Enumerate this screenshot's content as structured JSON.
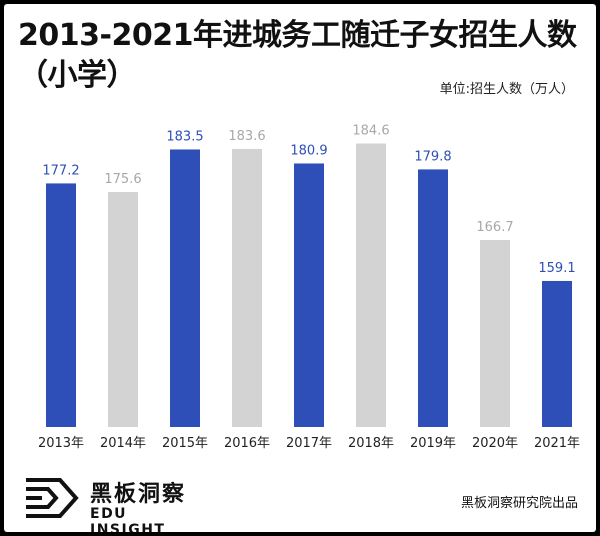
{
  "chart_data": {
    "type": "bar",
    "title": "2013-2021年进城务工随迁子女招生人数（小学）",
    "unit_label": "单位:招生人数（万人）",
    "categories": [
      "2013年",
      "2014年",
      "2015年",
      "2016年",
      "2017年",
      "2018年",
      "2019年",
      "2020年",
      "2021年"
    ],
    "values": [
      177.2,
      175.6,
      183.5,
      183.6,
      180.9,
      184.6,
      179.8,
      166.7,
      159.1
    ],
    "value_labels": [
      "177.2",
      "175.6",
      "183.5",
      "183.6",
      "180.9",
      "184.6",
      "179.8",
      "166.7",
      "159.1"
    ],
    "highlight": [
      true,
      false,
      true,
      false,
      true,
      false,
      true,
      false,
      true
    ],
    "colors": {
      "highlight": "#2f4fb8",
      "normal": "#d3d3d3",
      "highlight_label": "#2f4fb8",
      "normal_label": "#a8a8a8"
    },
    "ylim": [
      132,
      186
    ],
    "grid": false
  },
  "footer": {
    "brand_cn": "黑板洞察",
    "brand_en": "EDU INSIGHT",
    "source": "黑板洞察研究院出品",
    "logo_icon": "edu-insight-logo-icon"
  }
}
